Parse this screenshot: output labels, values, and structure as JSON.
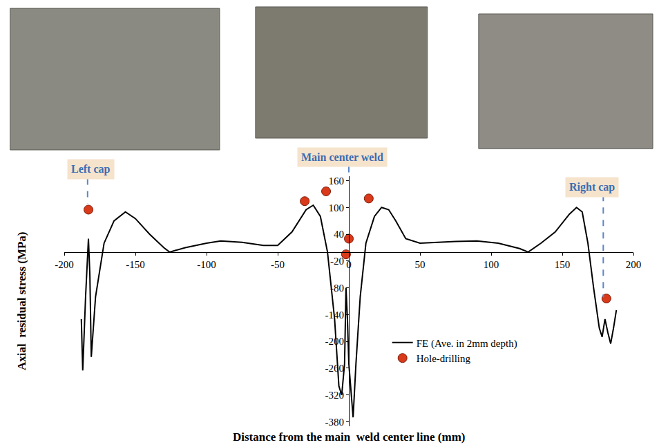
{
  "chart_data": {
    "type": "line",
    "x_label": "Distance from the main  weld center line (mm)",
    "y_label": "Axial  residual stress (MPa)",
    "xlim": [
      -200,
      200
    ],
    "xticks": [
      -200,
      -150,
      -100,
      -50,
      0,
      50,
      100,
      150,
      200
    ],
    "ylim": [
      -390,
      170
    ],
    "yticks": [
      -380,
      -320,
      -260,
      -200,
      -140,
      -80,
      -20,
      40,
      100,
      160
    ],
    "grid": false,
    "legend": "lower right",
    "annotations": [
      "Left cap",
      "Main center weld",
      "Right cap"
    ],
    "series": [
      {
        "name": "FE (Ave. in 2mm depth)",
        "type": "line",
        "color": "#000000",
        "line_style": "solid",
        "x": [
          -188,
          -187,
          -185,
          -183,
          -182,
          -181,
          -178,
          -172,
          -165,
          -157,
          -150,
          -140,
          -130,
          -126,
          -115,
          -100,
          -90,
          -75,
          -60,
          -50,
          -40,
          -30,
          -25,
          -20,
          -15,
          -10,
          -7,
          -5,
          -3,
          -2,
          -1,
          0,
          2,
          3,
          5,
          8,
          12,
          18,
          23,
          28,
          33,
          40,
          50,
          60,
          75,
          90,
          105,
          120,
          126,
          135,
          145,
          155,
          160,
          164,
          168,
          172,
          176,
          178,
          180,
          182,
          184,
          186,
          188
        ],
        "values": [
          -150,
          -265,
          -100,
          30,
          -50,
          -235,
          -100,
          20,
          70,
          90,
          75,
          40,
          10,
          0,
          10,
          20,
          25,
          22,
          15,
          15,
          45,
          95,
          105,
          80,
          0,
          -150,
          -300,
          -320,
          -250,
          -80,
          -150,
          -250,
          -330,
          -370,
          -250,
          -100,
          20,
          80,
          100,
          95,
          70,
          30,
          20,
          22,
          24,
          25,
          20,
          8,
          0,
          20,
          45,
          85,
          100,
          90,
          20,
          -80,
          -170,
          -190,
          -150,
          -180,
          -205,
          -170,
          -130
        ]
      },
      {
        "name": "Hole-drilling",
        "type": "scatter",
        "color": "#d93a1a",
        "marker": "circle",
        "x": [
          -183,
          -31,
          -16,
          0,
          -2,
          14,
          181
        ],
        "values": [
          95,
          114,
          136,
          30,
          -5,
          120,
          -104
        ]
      }
    ]
  }
}
